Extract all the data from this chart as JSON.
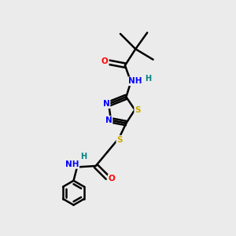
{
  "background_color": "#ebebeb",
  "atom_colors": {
    "C": "#000000",
    "N": "#0000ff",
    "O": "#ff0000",
    "S": "#ccaa00",
    "H": "#008080"
  }
}
